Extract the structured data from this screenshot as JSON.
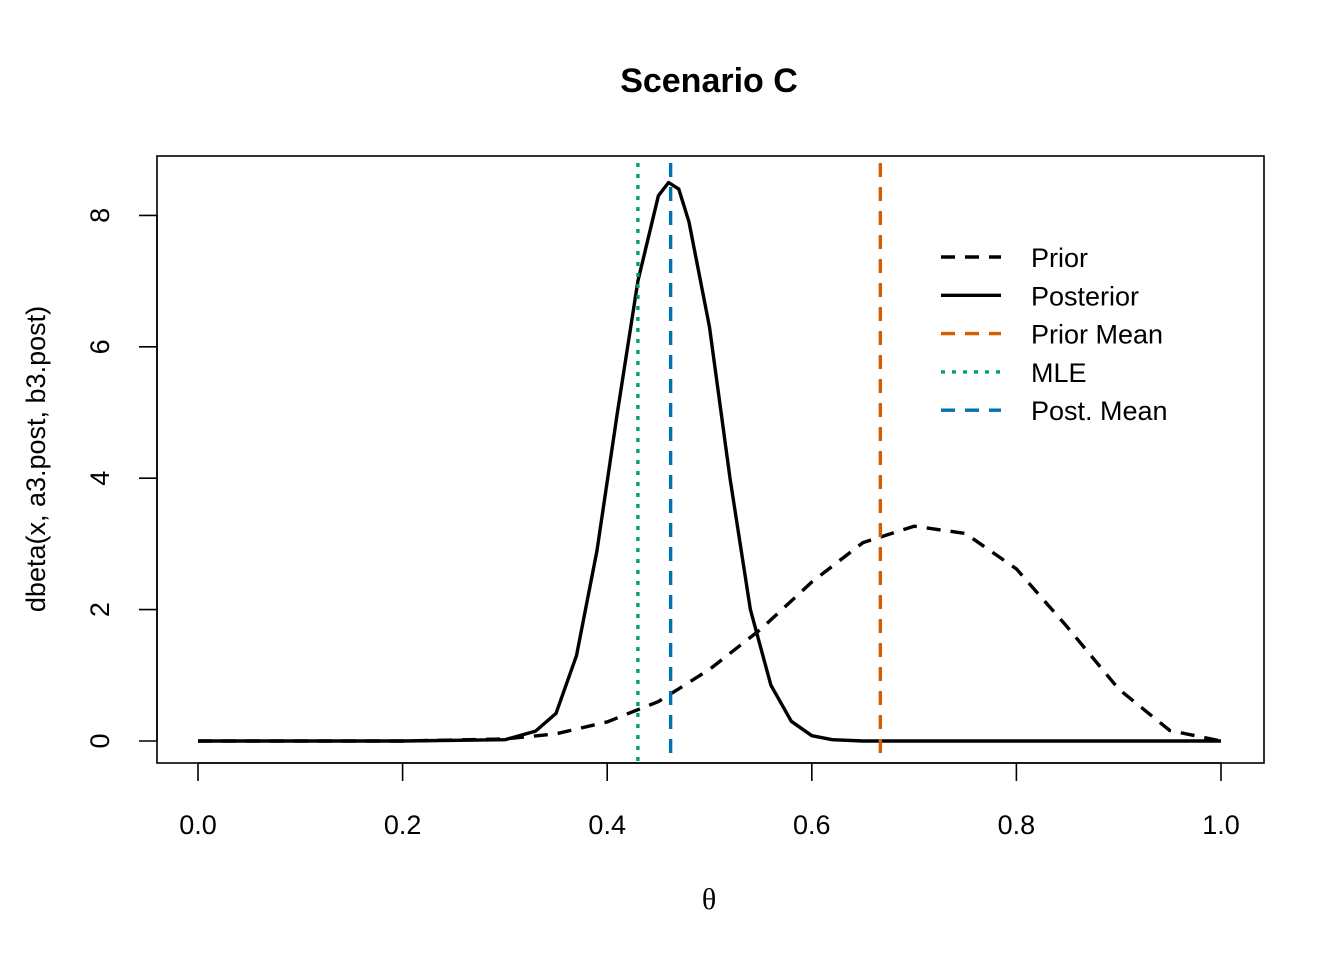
{
  "chart_data": {
    "type": "line",
    "title": "Scenario C",
    "xlabel": "θ",
    "ylabel": "dbeta(x, a3.post, b3.post)",
    "xlim": [
      0,
      1
    ],
    "ylim": [
      0,
      8.6
    ],
    "x_ticks": [
      "0.0",
      "0.2",
      "0.4",
      "0.6",
      "0.8",
      "1.0"
    ],
    "x_tick_values": [
      0,
      0.2,
      0.4,
      0.6,
      0.8,
      1.0
    ],
    "y_ticks": [
      "0",
      "2",
      "4",
      "6",
      "8"
    ],
    "y_tick_values": [
      0,
      2,
      4,
      6,
      8
    ],
    "grid": false,
    "legend_position": "top-right",
    "series": [
      {
        "name": "Prior",
        "style": "dashed",
        "color": "#000000",
        "x": [
          0.0,
          0.2,
          0.3,
          0.35,
          0.4,
          0.45,
          0.5,
          0.55,
          0.6,
          0.65,
          0.7,
          0.75,
          0.8,
          0.85,
          0.9,
          0.95,
          1.0
        ],
        "y": [
          0.0,
          0.0,
          0.03,
          0.11,
          0.29,
          0.6,
          1.09,
          1.7,
          2.42,
          3.02,
          3.27,
          3.16,
          2.62,
          1.73,
          0.79,
          0.16,
          0.0
        ]
      },
      {
        "name": "Posterior",
        "style": "solid",
        "color": "#000000",
        "x": [
          0.0,
          0.2,
          0.3,
          0.33,
          0.35,
          0.37,
          0.39,
          0.41,
          0.43,
          0.45,
          0.46,
          0.47,
          0.48,
          0.5,
          0.52,
          0.54,
          0.56,
          0.58,
          0.6,
          0.62,
          0.65,
          1.0
        ],
        "y": [
          0.0,
          0.0,
          0.02,
          0.15,
          0.42,
          1.3,
          2.9,
          5.0,
          7.0,
          8.3,
          8.5,
          8.4,
          7.9,
          6.3,
          4.0,
          2.0,
          0.85,
          0.3,
          0.08,
          0.02,
          0.0,
          0.0
        ]
      },
      {
        "name": "Prior Mean",
        "style": "dashed",
        "color": "#D55E00",
        "vline": 0.667
      },
      {
        "name": "MLE",
        "style": "dotted",
        "color": "#009E73",
        "vline": 0.43
      },
      {
        "name": "Post. Mean",
        "style": "dashed",
        "color": "#0072B2",
        "vline": 0.462
      }
    ]
  }
}
